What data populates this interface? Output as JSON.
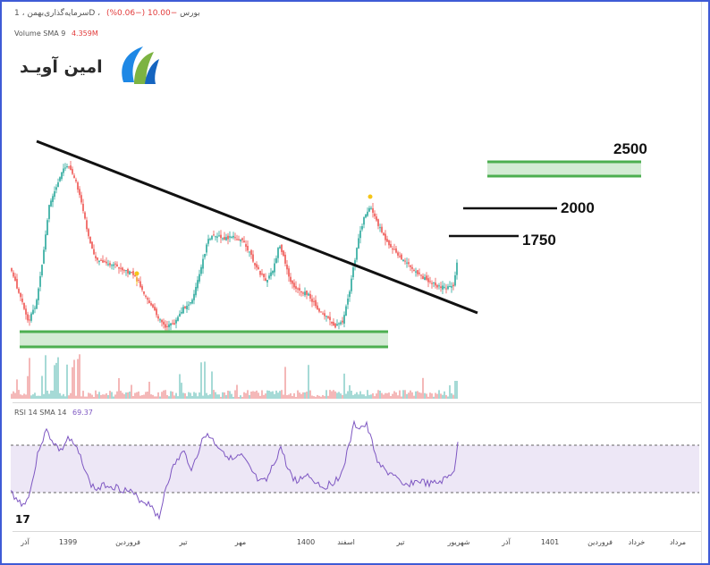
{
  "header": {
    "symbol_line": "سرمایه‌گذاری‌بهمن ، 1D ، بورس",
    "change": "−10.00 (−0.06%)"
  },
  "volume": {
    "label": "Volume SMA 9",
    "value": "4.359M"
  },
  "rsi": {
    "label": "RSI 14 SMA 14",
    "value": "69.37"
  },
  "logo": {
    "text": "امین آویـد",
    "icon": "leaf-swoosh-icon"
  },
  "watermark": {
    "text": "17"
  },
  "chart_data": {
    "type": "candlestick",
    "x_ticks": [
      "آذر",
      "1399",
      "فروردین",
      "تیر",
      "مهر",
      "1400",
      "اسفند",
      "تیر",
      "شهریور",
      "آذر",
      "1401",
      "فروردین",
      "خرداد",
      "مرداد"
    ],
    "levels": [
      {
        "label": "2500",
        "value": 2500
      },
      {
        "label": "2000",
        "value": 2000
      },
      {
        "label": "1750",
        "value": 1750
      }
    ],
    "zones": [
      {
        "name": "support-zone"
      },
      {
        "name": "resistance-zone"
      }
    ],
    "trendline": {
      "name": "descending-trendline"
    },
    "rsi_bands": [
      30,
      70
    ],
    "colors": {
      "up": "#26a69a",
      "down": "#ef5350",
      "rsi": "#7e57c2",
      "zone": "#4caf50",
      "dot": "#f5c518"
    }
  }
}
